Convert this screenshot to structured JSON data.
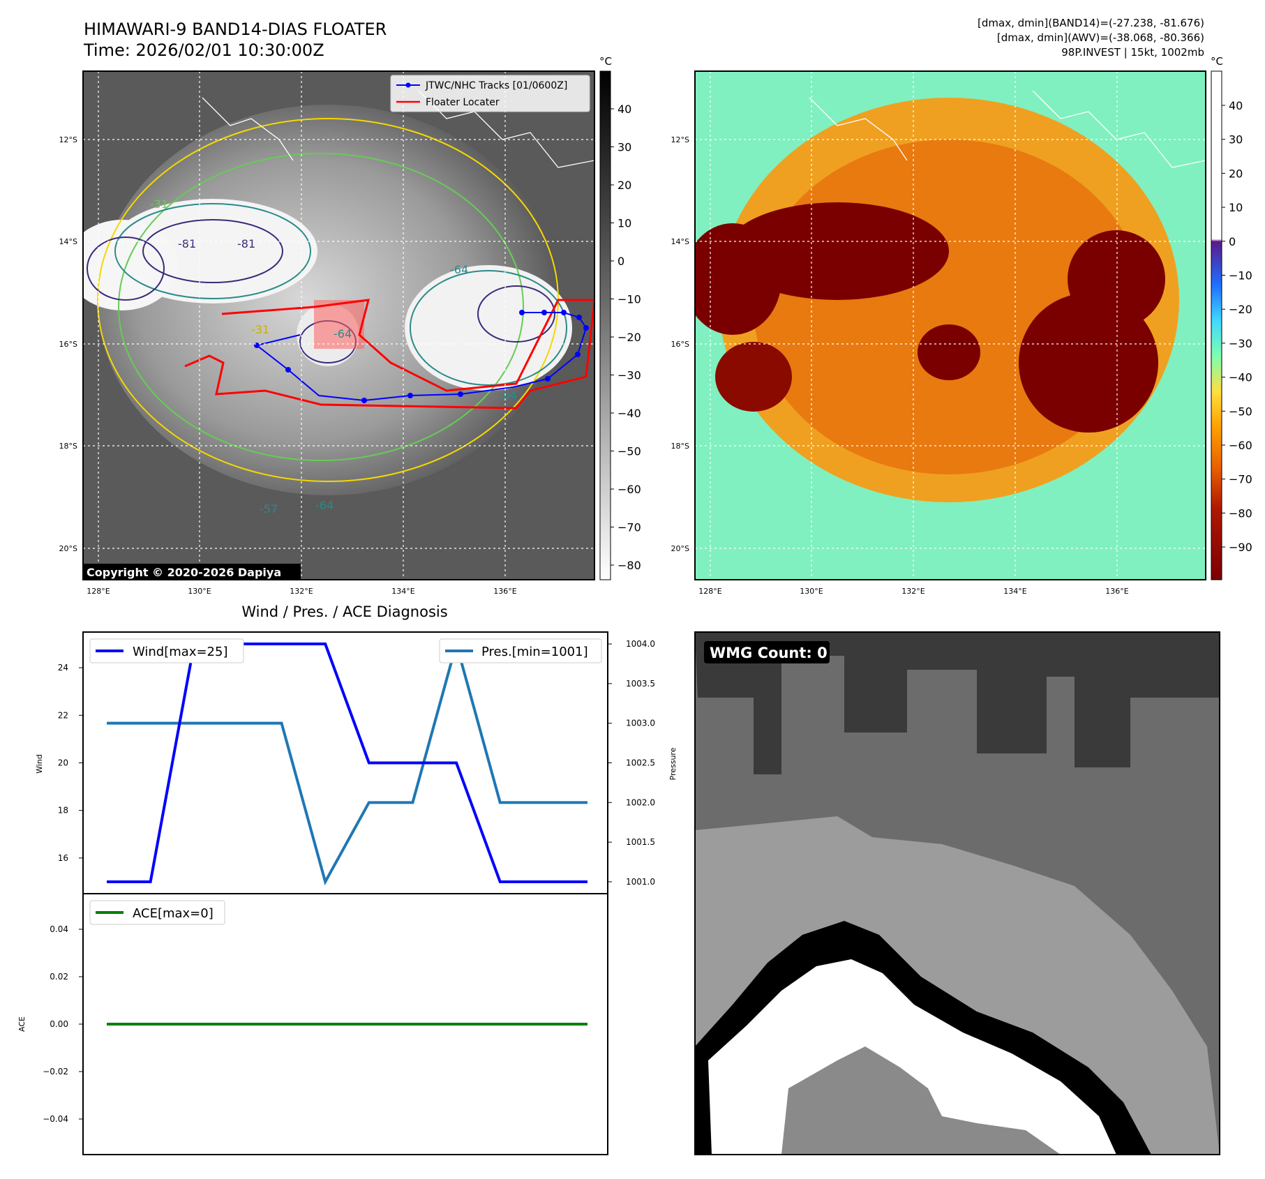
{
  "header": {
    "title_line1": "HIMAWARI-9 BAND14-DIAS FLOATER",
    "title_line2": "Time: 2026/02/01 10:30:00Z",
    "info_line1": "[dmax, dmin](BAND14)=(-27.238, -81.676)",
    "info_line2": "[dmax, dmin](AWV)=(-38.068, -80.366)",
    "info_line3": "98P.INVEST | 15kt, 1002mb"
  },
  "colors": {
    "wind": "#0000ff",
    "pressure": "#1f77b4",
    "ace": "#008000",
    "track": "#0000ff",
    "locater": "#ff0000"
  },
  "map_ir": {
    "lat_labels": [
      "12°S",
      "14°S",
      "16°S",
      "18°S",
      "20°S"
    ],
    "lon_labels": [
      "128°E",
      "130°E",
      "132°E",
      "134°E",
      "136°E"
    ],
    "legend": [
      "JTWC/NHC Tracks [01/0600Z]",
      "Floater Locater"
    ],
    "copyright": "Copyright © 2020-2026 Dapiya",
    "contour_labels": [
      "-81",
      "-81",
      "-64",
      "-31",
      "-64",
      "-57",
      "-64",
      "-31",
      "-64"
    ],
    "colorbar_unit": "°C",
    "colorbar_ticks": [
      "40",
      "30",
      "20",
      "10",
      "0",
      "−10",
      "−20",
      "−30",
      "−40",
      "−50",
      "−60",
      "−70",
      "−80"
    ]
  },
  "map_awv": {
    "lat_labels": [
      "12°S",
      "14°S",
      "16°S",
      "18°S",
      "20°S"
    ],
    "lon_labels": [
      "128°E",
      "130°E",
      "132°E",
      "134°E",
      "136°E"
    ],
    "colorbar_unit": "°C",
    "colorbar_ticks": [
      "40",
      "30",
      "20",
      "10",
      "0",
      "−10",
      "−20",
      "−30",
      "−40",
      "−50",
      "−60",
      "−70",
      "−80",
      "−90"
    ]
  },
  "wmg": {
    "label": "WMG Count: 0"
  },
  "chart_data": [
    {
      "type": "line",
      "title": "Wind / Pres. / ACE Diagnosis",
      "ylabel": "Wind",
      "y2label": "Pressure",
      "ylim": [
        14.5,
        25.5
      ],
      "y2lim": [
        1000.85,
        1004.15
      ],
      "yticks": [
        16,
        18,
        20,
        22,
        24
      ],
      "y2ticks": [
        "1001.0",
        "1001.5",
        "1002.0",
        "1002.5",
        "1003.0",
        "1003.5",
        "1004.0"
      ],
      "series": [
        {
          "name": "Wind[max=25]",
          "axis": "left",
          "values": [
            15,
            15,
            25,
            25,
            25,
            25,
            20,
            20,
            20,
            15,
            15,
            15
          ]
        },
        {
          "name": "Pres.[min=1001]",
          "axis": "right",
          "values": [
            1003,
            1003,
            1003,
            1003,
            1003,
            1001,
            1002,
            1002,
            1004,
            1002,
            1002,
            1002
          ]
        }
      ],
      "grid": false,
      "legend": [
        "top-left",
        "top-right"
      ]
    },
    {
      "type": "line",
      "ylabel": "ACE",
      "ylim": [
        -0.055,
        0.055
      ],
      "yticks": [
        "0.04",
        "0.02",
        "0.00",
        "−0.02",
        "−0.04"
      ],
      "series": [
        {
          "name": "ACE[max=0]",
          "values": [
            0,
            0,
            0,
            0,
            0,
            0,
            0,
            0,
            0,
            0,
            0,
            0
          ]
        }
      ],
      "grid": false,
      "legend": "top-left"
    }
  ]
}
